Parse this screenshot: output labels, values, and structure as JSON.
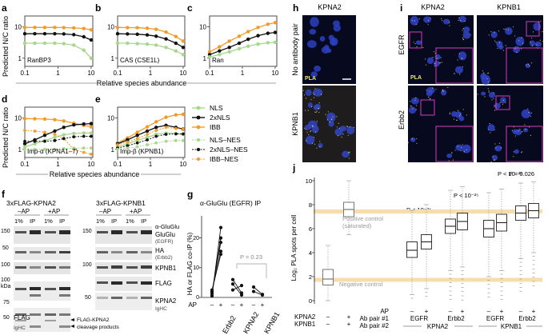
{
  "figure": {
    "panels": {
      "a": "a",
      "b": "b",
      "c": "c",
      "d": "d",
      "e": "e",
      "f": "f",
      "g": "g",
      "h": "h",
      "i": "i",
      "j": "j"
    },
    "abcde": {
      "ylabel": "Predicted N/C ratio",
      "xlabel": "Relative species abundance",
      "x_ticks": [
        "0.1",
        "1",
        "10"
      ],
      "y_ticks": [
        "10",
        "1"
      ]
    },
    "legend": {
      "entries": [
        "NLS",
        "2xNLS",
        "IBB",
        "NLS–NES",
        "2xNLS–NES",
        "IBB–NES"
      ],
      "colors": [
        "#a6d78c",
        "#111111",
        "#f39a2b",
        "#a6d78c",
        "#111111",
        "#f39a2b"
      ]
    },
    "f": {
      "left_title": "3xFLAG-KPNA2",
      "right_title": "3xFLAG-KPNB1",
      "ap_minus": "–AP",
      "ap_plus": "+AP",
      "lane_1pct": "1%",
      "lane_ip": "IP",
      "markers_top": [
        "150",
        "50",
        "100",
        "100",
        "kDa"
      ],
      "markers_bottom": [
        "150",
        "100",
        "50"
      ],
      "marker_kpna2": [
        "75",
        "50"
      ],
      "bands": [
        "α-GluGlu",
        "GluGlu",
        "(EGFR)",
        "HA",
        "(Erbb2)",
        "KPNB1",
        "FLAG",
        "KPNA2",
        "IgHC",
        "FLAG"
      ],
      "notes": [
        "FLAG-KPNA2",
        "cleavage products",
        "IgHC"
      ]
    },
    "g": {
      "title": "α-GluGlu (EGFR) IP",
      "ylabel": "HA or FLAG co-IP (%)",
      "y_ticks": [
        "20",
        "10",
        "0"
      ],
      "ap_label": "AP",
      "minus": "–",
      "plus": "+",
      "pvalue": "P = 0.23",
      "groups": [
        "Erbb2",
        "KPNA2",
        "KPNB1"
      ]
    },
    "h": {
      "title": "KPNA2",
      "row1": "No antibody pair",
      "row2": "KPNB1",
      "pla": "PLA"
    },
    "i": {
      "col1": "KPNA2",
      "col2": "KPNB1",
      "row1": "EGFR",
      "row2": "Erbb2",
      "pla": "PLA"
    },
    "j": {
      "ylabel": "Log₂ PLA spots per cell",
      "y_ticks": [
        "10",
        "8",
        "6",
        "4",
        "2",
        "0"
      ],
      "pvalues": [
        "P < 10⁻²⁵",
        "P < 10⁻²⁵",
        "P < 10⁻²⁶",
        "P = 0.026"
      ],
      "pos_control": "Positive control",
      "pos_control2": "(saturated)",
      "neg_control": "Negative control",
      "rows": {
        "kpna2": "KPNA2",
        "kpnb1": "KPNB1",
        "ap": "AP",
        "abpair1": "Ab pair #1",
        "abpair2": "Ab pair #2"
      },
      "vals": {
        "minus": "–",
        "plus": "+",
        "egfr": "EGFR",
        "erbb2": "Erbb2",
        "kpna2": "KPNA2",
        "kpnb1": "KPNB1"
      }
    }
  },
  "chart_data": [
    {
      "panel": "a",
      "type": "line",
      "ylabel": "Predicted N/C ratio",
      "inset_label": "RanBP3",
      "x": [
        0.1,
        0.2,
        0.4,
        0.8,
        1.5,
        3,
        6,
        10
      ],
      "series": [
        {
          "name": "IBB",
          "color": "#f39a2b",
          "values": [
            9.5,
            9.5,
            9.5,
            9.5,
            9.4,
            9.2,
            8.8,
            8.0
          ]
        },
        {
          "name": "2xNLS",
          "color": "#111111",
          "values": [
            6.0,
            6.0,
            6.0,
            6.0,
            5.9,
            5.6,
            4.8,
            3.8
          ]
        },
        {
          "name": "NLS",
          "color": "#a6d78c",
          "values": [
            3.0,
            3.0,
            3.0,
            3.0,
            2.9,
            2.6,
            1.8,
            1.0
          ]
        }
      ]
    },
    {
      "panel": "b",
      "type": "line",
      "ylabel": "Predicted N/C ratio",
      "inset_label": "CAS (CSE1L)",
      "x": [
        0.1,
        0.2,
        0.4,
        0.8,
        1.5,
        3,
        6,
        10
      ],
      "series": [
        {
          "name": "IBB",
          "color": "#f39a2b",
          "values": [
            9.5,
            9.4,
            9.3,
            9.0,
            8.3,
            6.8,
            4.9,
            3.5
          ]
        },
        {
          "name": "2xNLS",
          "color": "#111111",
          "values": [
            6.0,
            5.9,
            5.8,
            5.5,
            5.0,
            4.1,
            3.0,
            2.2
          ]
        },
        {
          "name": "NLS",
          "color": "#a6d78c",
          "values": [
            3.0,
            3.0,
            2.9,
            2.8,
            2.6,
            2.2,
            1.7,
            1.3
          ]
        }
      ]
    },
    {
      "panel": "c",
      "type": "line",
      "ylabel": "Predicted N/C ratio",
      "inset_label": "Ran",
      "x": [
        0.1,
        0.2,
        0.4,
        0.8,
        1.5,
        3,
        6,
        10
      ],
      "series": [
        {
          "name": "IBB",
          "color": "#f39a2b",
          "values": [
            1.6,
            2.3,
            3.5,
            5.0,
            7.0,
            9.5,
            12.0,
            13.5
          ]
        },
        {
          "name": "2xNLS",
          "color": "#111111",
          "values": [
            1.3,
            1.7,
            2.2,
            3.0,
            4.0,
            5.2,
            6.2,
            6.6
          ]
        },
        {
          "name": "NLS",
          "color": "#a6d78c",
          "values": [
            1.1,
            1.3,
            1.6,
            2.0,
            2.4,
            2.8,
            3.1,
            3.2
          ]
        }
      ]
    },
    {
      "panel": "d",
      "type": "line",
      "ylabel": "Predicted N/C ratio",
      "inset_label": "Imp-α (KPNA1–7)",
      "x": [
        0.1,
        0.2,
        0.4,
        0.8,
        1.5,
        3,
        6,
        10
      ],
      "series": [
        {
          "name": "IBB",
          "color": "#f39a2b",
          "values": [
            9.5,
            9.4,
            9.2,
            8.8,
            8.0,
            6.8,
            5.8,
            5.2
          ]
        },
        {
          "name": "2xNLS",
          "color": "#111111",
          "values": [
            1.5,
            2.0,
            2.8,
            3.8,
            5.0,
            6.0,
            6.4,
            6.6
          ]
        },
        {
          "name": "NLS",
          "color": "#a6d78c",
          "values": [
            1.2,
            1.5,
            1.9,
            2.4,
            2.9,
            3.2,
            3.3,
            3.3
          ]
        },
        {
          "name": "IBB–NES",
          "color": "#f39a2b",
          "values": [
            4.0,
            3.8,
            3.5,
            3.0,
            2.2,
            1.0,
            0.8,
            0.7
          ]
        },
        {
          "name": "2xNLS–NES",
          "color": "#111111",
          "values": [
            1.8,
            1.8,
            1.8,
            1.9,
            2.2,
            2.5,
            2.6,
            2.6
          ]
        },
        {
          "name": "NLS–NES",
          "color": "#a6d78c",
          "values": [
            1.0,
            1.0,
            1.0,
            1.0,
            1.05,
            1.1,
            1.1,
            1.1
          ]
        }
      ]
    },
    {
      "panel": "e",
      "type": "line",
      "ylabel": "Predicted N/C ratio",
      "inset_label": "Imp-β (KPNB1)",
      "x": [
        0.1,
        0.2,
        0.4,
        0.8,
        1.5,
        3,
        6,
        10
      ],
      "series": [
        {
          "name": "IBB",
          "color": "#f39a2b",
          "values": [
            1.6,
            2.3,
            3.5,
            5.2,
            7.5,
            10.5,
            12.5,
            13.0
          ]
        },
        {
          "name": "2xNLS",
          "color": "#111111",
          "values": [
            1.5,
            2.0,
            2.8,
            3.8,
            5.0,
            5.8,
            5.0,
            4.4
          ]
        },
        {
          "name": "NLS",
          "color": "#a6d78c",
          "values": [
            1.2,
            1.5,
            1.9,
            2.4,
            3.0,
            3.3,
            3.2,
            3.0
          ]
        },
        {
          "name": "IBB–NES",
          "color": "#f39a2b",
          "values": [
            1.4,
            1.7,
            2.2,
            3.0,
            4.0,
            5.0,
            4.6,
            4.4
          ]
        },
        {
          "name": "2xNLS–NES",
          "color": "#111111",
          "values": [
            1.1,
            1.3,
            1.6,
            2.0,
            2.6,
            3.0,
            3.1,
            3.1
          ]
        },
        {
          "name": "NLS–NES",
          "color": "#a6d78c",
          "values": [
            1.0,
            1.1,
            1.2,
            1.4,
            1.6,
            1.8,
            1.9,
            1.9
          ]
        }
      ]
    },
    {
      "panel": "g",
      "type": "line",
      "title": "α-GluGlu (EGFR) IP",
      "ylabel": "HA or FLAG co-IP (%)",
      "ylim": [
        0,
        25
      ],
      "groups": [
        {
          "name": "Erbb2",
          "pairs": [
            [
              0.5,
              23.5
            ],
            [
              1.2,
              20.0
            ],
            [
              1.8,
              18.5
            ],
            [
              2.0,
              15.5
            ],
            [
              2.5,
              14.5
            ]
          ]
        },
        {
          "name": "KPNA2",
          "pairs": [
            [
              2.5,
              4.0
            ],
            [
              6.0,
              1.5
            ],
            [
              4.5,
              0.8
            ]
          ]
        },
        {
          "name": "KPNB1",
          "pairs": [
            [
              3.5,
              1.0
            ],
            [
              2.0,
              0.8
            ]
          ]
        }
      ]
    },
    {
      "panel": "j",
      "type": "box",
      "ylabel": "Log₂ PLA spots per cell",
      "ylim": [
        0,
        10
      ],
      "boxes": [
        {
          "label": "Negative control",
          "q1": 1.3,
          "median": 1.8,
          "q3": 2.6,
          "whisker_low": 0.0,
          "whisker_high": 4.6
        },
        {
          "label": "Positive control",
          "q1": 7.0,
          "median": 7.6,
          "q3": 8.2,
          "whisker_low": 5.5,
          "whisker_high": 10.0
        },
        {
          "label": "KPNA2 EGFR -AP",
          "q1": 3.6,
          "median": 4.2,
          "q3": 4.9,
          "whisker_low": 0.5,
          "whisker_high": 7.5
        },
        {
          "label": "KPNA2 EGFR +AP",
          "q1": 4.3,
          "median": 4.9,
          "q3": 5.5,
          "whisker_low": 1.0,
          "whisker_high": 8.0
        },
        {
          "label": "KPNA2 Erbb2 -AP",
          "q1": 5.6,
          "median": 6.2,
          "q3": 6.8,
          "whisker_low": 2.5,
          "whisker_high": 9.2
        },
        {
          "label": "KPNA2 Erbb2 +AP",
          "q1": 5.9,
          "median": 6.6,
          "q3": 7.3,
          "whisker_low": 2.8,
          "whisker_high": 9.5
        },
        {
          "label": "KPNB1 EGFR -AP",
          "q1": 5.3,
          "median": 6.0,
          "q3": 6.7,
          "whisker_low": 2.0,
          "whisker_high": 9.0
        },
        {
          "label": "KPNB1 EGFR +AP",
          "q1": 5.8,
          "median": 6.5,
          "q3": 7.2,
          "whisker_low": 2.5,
          "whisker_high": 9.3
        },
        {
          "label": "KPNB1 Erbb2 -AP",
          "q1": 6.7,
          "median": 7.3,
          "q3": 7.9,
          "whisker_low": 3.5,
          "whisker_high": 9.8
        },
        {
          "label": "KPNB1 Erbb2 +AP",
          "q1": 6.9,
          "median": 7.5,
          "q3": 8.1,
          "whisker_low": 4.0,
          "whisker_high": 9.9
        }
      ]
    }
  ]
}
